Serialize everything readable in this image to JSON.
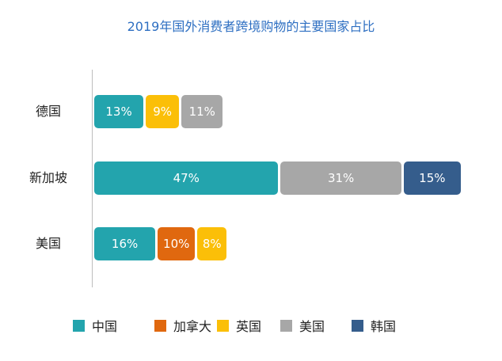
{
  "chart_data": {
    "type": "bar",
    "orientation": "horizontal",
    "stacked": true,
    "title": "2019年国外消费者跨境购物的主要国家占比",
    "categories": [
      "德国",
      "新加坡",
      "美国"
    ],
    "series": [
      {
        "name": "中国",
        "color": "#23a4ad",
        "values": [
          13,
          47,
          16
        ]
      },
      {
        "name": "加拿大",
        "color": "#e0680f",
        "values": [
          0,
          0,
          10
        ]
      },
      {
        "name": "英国",
        "color": "#fbbf08",
        "values": [
          9,
          0,
          8
        ]
      },
      {
        "name": "美国",
        "color": "#a7a7a7",
        "values": [
          11,
          31,
          0
        ]
      },
      {
        "name": "韩国",
        "color": "#355d8c",
        "values": [
          0,
          15,
          0
        ]
      }
    ],
    "value_suffix": "%",
    "legend_position": "bottom",
    "grid": false
  }
}
